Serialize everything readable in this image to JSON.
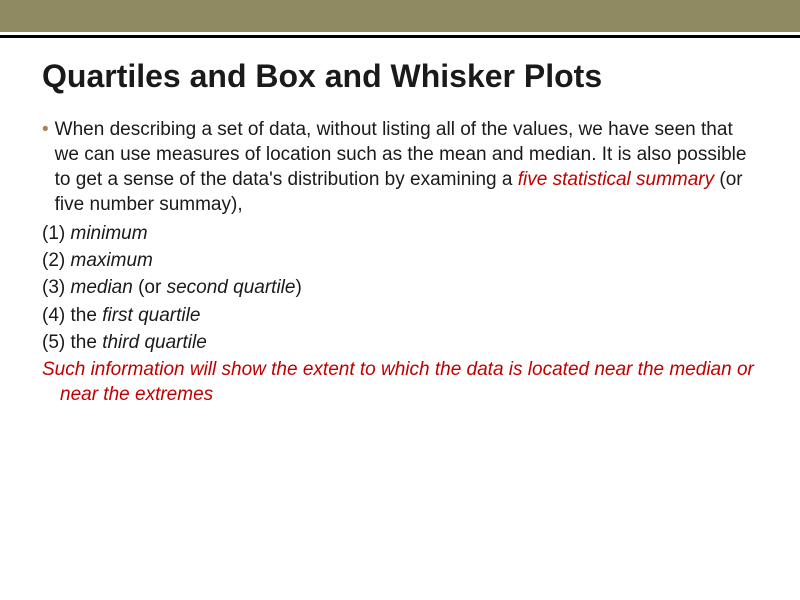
{
  "colors": {
    "top_bar": "#908a63",
    "divider": "#000000",
    "bullet": "#b08050",
    "emphasis": "#c00000",
    "text": "#1a1a1a",
    "background": "#ffffff"
  },
  "typography": {
    "title_fontsize": 32,
    "body_fontsize": 19,
    "font_family": "Arial"
  },
  "title": "Quartiles and Box and Whisker Plots",
  "intro": {
    "pre": "When describing a set of data, without listing all of the values, we have seen that we can use measures of location such as the mean and median. It is also possible to get a sense of the data's distribution by examining a ",
    "emph": "five statistical summary",
    "post": " (or five number summay),"
  },
  "items": {
    "n1": "(1) ",
    "t1": "minimum",
    "n2": "(2) ",
    "t2": "maximum",
    "n3": "(3) ",
    "t3a": "median",
    "t3mid": " (or ",
    "t3b": "second quartile",
    "t3end": ")",
    "n4": "(4) the ",
    "t4": "first quartile",
    "n5": "(5) the ",
    "t5": "third quartile"
  },
  "summary": "Such information will show the extent to which the data is located near the median or near the extremes"
}
